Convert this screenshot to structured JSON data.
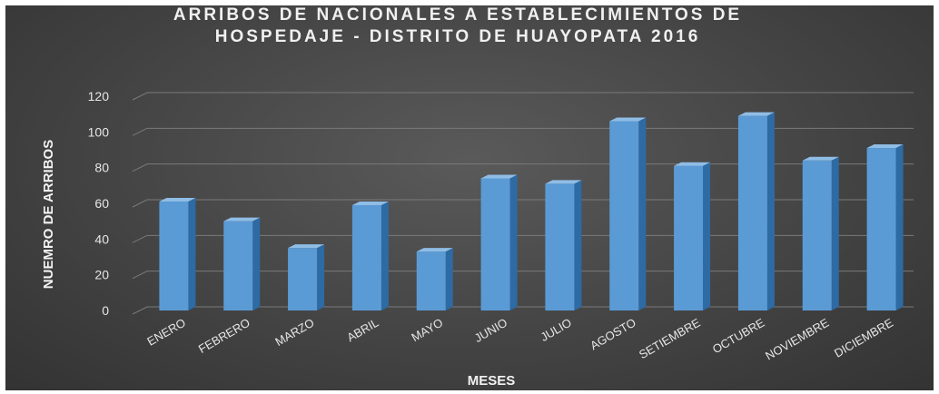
{
  "chart_data": {
    "type": "bar",
    "title_lines": [
      "ARRIBOS DE NACIONALES A ESTABLECIMIENTOS DE",
      "HOSPEDAJE - DISTRITO DE HUAYOPATA 2016"
    ],
    "xlabel": "MESES",
    "ylabel": "NUEMRO DE ARRIBOS",
    "categories": [
      "ENERO",
      "FEBRERO",
      "MARZO",
      "ABRIL",
      "MAYO",
      "JUNIO",
      "JULIO",
      "AGOSTO",
      "SETIEMBRE",
      "OCTUBRE",
      "NOVIEMBRE",
      "DICIEMBRE"
    ],
    "values": [
      61,
      50,
      35,
      59,
      33,
      74,
      71,
      106,
      81,
      109,
      84,
      91
    ],
    "ylim": [
      0,
      120
    ],
    "yticks": [
      "0",
      "20",
      "40",
      "60",
      "80",
      "100",
      "120"
    ],
    "grid": true,
    "colors": {
      "bar_front": "#5b9bd5",
      "bar_side": "#2e6aa3",
      "bar_top": "#8fbde6",
      "background": "#404040",
      "text": "#e6e6e6"
    }
  }
}
